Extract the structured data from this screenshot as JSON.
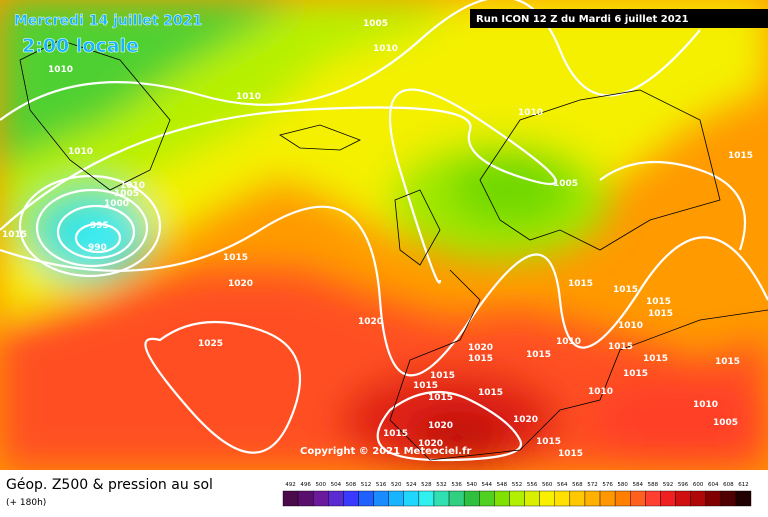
{
  "header": {
    "date": "Mercredi 14 juillet 2021",
    "time": "2:00 locale",
    "run": "Run ICON 12 Z du Mardi 6 juillet 2021"
  },
  "copyright": "Copyright © 2021 Meteociel.fr",
  "legend": {
    "title": "Géop. Z500 & pression au sol",
    "subtitle": "(+ 180h)",
    "scale": [
      492,
      496,
      500,
      504,
      508,
      512,
      516,
      520,
      524,
      528,
      532,
      536,
      540,
      544,
      548,
      552,
      556,
      560,
      564,
      568,
      572,
      576,
      580,
      584,
      588,
      592,
      596,
      600,
      604,
      608,
      612
    ],
    "colors": [
      "#4b0a4b",
      "#5a0f6e",
      "#6a1a9a",
      "#5a2bd0",
      "#3a3aff",
      "#2060ff",
      "#1a8cff",
      "#19b4ff",
      "#20d6ff",
      "#30f0f0",
      "#30e0b0",
      "#30d080",
      "#30c040",
      "#50d020",
      "#80e000",
      "#b0f000",
      "#d8f000",
      "#f8f000",
      "#ffe000",
      "#ffc800",
      "#ffb000",
      "#ff9800",
      "#ff8000",
      "#ff6020",
      "#ff4030",
      "#f02020",
      "#d01010",
      "#b00808",
      "#800000",
      "#500000",
      "#200000"
    ]
  },
  "isobar_labels": [
    "1005",
    "1010",
    "1010",
    "1010",
    "1010",
    "1015",
    "1010",
    "1010",
    "1005",
    "1000",
    "995",
    "990",
    "1005",
    "1015",
    "1015",
    "1020",
    "1015",
    "1015",
    "1015",
    "1020",
    "1010",
    "1015",
    "1025",
    "1010",
    "1020",
    "1015",
    "1015",
    "1015",
    "1015",
    "1015",
    "1015",
    "1015",
    "1015",
    "1010",
    "1015",
    "1015",
    "1010",
    "1005",
    "1020",
    "1020",
    "1015",
    "1015",
    "1020",
    "1015"
  ]
}
